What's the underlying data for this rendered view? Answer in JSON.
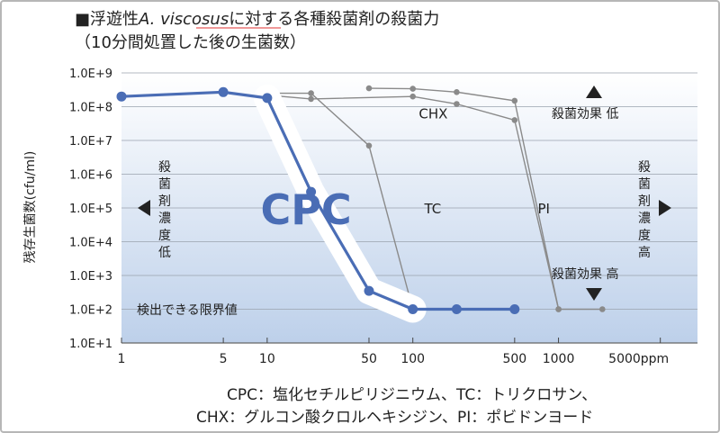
{
  "chart_data": {
    "type": "line",
    "title_line1_prefix": "■浮遊性",
    "title_line1_italic": "A. viscosus",
    "title_line1_suffix": "に対する各種殺菌剤の殺菌力",
    "title_line2": "（10分間処置した後の生菌数）",
    "ylabel": "残存生菌数(cfu/ml)",
    "x_scale": "log",
    "y_scale": "log",
    "xlim": [
      1,
      9000
    ],
    "ylim": [
      10,
      1000000000
    ],
    "x_ticks": [
      {
        "value": 1,
        "label": "1"
      },
      {
        "value": 5,
        "label": "5"
      },
      {
        "value": 10,
        "label": "10"
      },
      {
        "value": 50,
        "label": "50"
      },
      {
        "value": 100,
        "label": "100"
      },
      {
        "value": 500,
        "label": "500"
      },
      {
        "value": 1000,
        "label": "1000"
      },
      {
        "value": 5000,
        "label": "5000ppm"
      }
    ],
    "y_ticks": [
      {
        "value": 10,
        "label": "1.0E+1"
      },
      {
        "value": 100,
        "label": "1.0E+2"
      },
      {
        "value": 1000,
        "label": "1.0E+3"
      },
      {
        "value": 10000,
        "label": "1.0E+4"
      },
      {
        "value": 100000,
        "label": "1.0E+5"
      },
      {
        "value": 1000000,
        "label": "1.0E+6"
      },
      {
        "value": 10000000,
        "label": "1.0E+7"
      },
      {
        "value": 100000000,
        "label": "1.0E+8"
      },
      {
        "value": 1000000000,
        "label": "1.0E+9"
      }
    ],
    "grid": true,
    "series": [
      {
        "name": "CPC",
        "color": "#4a6db5",
        "highlight": true,
        "label_x": 9,
        "label_y": 100000,
        "points": [
          [
            1,
            200000000
          ],
          [
            5,
            270000000
          ],
          [
            10,
            180000000
          ],
          [
            20,
            300000
          ],
          [
            50,
            350
          ],
          [
            100,
            100
          ],
          [
            200,
            100
          ],
          [
            500,
            100
          ]
        ]
      },
      {
        "name": "TC",
        "color": "#8a8a8a",
        "highlight": false,
        "label_x": 120,
        "label_y": 100000,
        "points": [
          [
            10,
            250000000
          ],
          [
            20,
            250000000
          ],
          [
            50,
            7000000
          ],
          [
            100,
            100
          ]
        ]
      },
      {
        "name": "CHX",
        "color": "#8a8a8a",
        "highlight": false,
        "label_x": 110,
        "label_y": 65000000,
        "points": [
          [
            10,
            220000000
          ],
          [
            20,
            170000000
          ],
          [
            100,
            200000000
          ],
          [
            200,
            120000000
          ],
          [
            500,
            40000000
          ],
          [
            1000,
            100
          ],
          [
            2000,
            100
          ]
        ]
      },
      {
        "name": "PI",
        "color": "#8a8a8a",
        "highlight": false,
        "label_x": 720,
        "label_y": 100000,
        "points": [
          [
            50,
            350000000
          ],
          [
            100,
            340000000
          ],
          [
            200,
            270000000
          ],
          [
            500,
            150000000
          ],
          [
            1000,
            100
          ]
        ]
      }
    ],
    "annotations": {
      "detect_limit": "検出できる限界値",
      "effect_low": "殺菌効果 低",
      "effect_high": "殺菌効果 高",
      "conc_low_lines": [
        "殺",
        "菌",
        "剤",
        "濃",
        "度",
        "低"
      ],
      "conc_high_lines": [
        "殺",
        "菌",
        "剤",
        "濃",
        "度",
        "高"
      ]
    },
    "caption_line1": "CPC：塩化セチルピリジニウム、TC：トリクロサン、",
    "caption_line2": "CHX：グルコン酸クロルヘキシジン、PI：ポビドンヨード"
  }
}
